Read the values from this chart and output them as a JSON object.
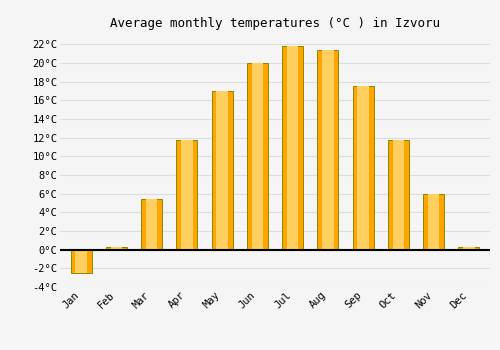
{
  "title": "Average monthly temperatures (°C ) in Izvoru",
  "months": [
    "Jan",
    "Feb",
    "Mar",
    "Apr",
    "May",
    "Jun",
    "Jul",
    "Aug",
    "Sep",
    "Oct",
    "Nov",
    "Dec"
  ],
  "values": [
    -2.5,
    0.3,
    5.4,
    11.8,
    17.0,
    20.0,
    21.8,
    21.4,
    17.5,
    11.8,
    6.0,
    0.3
  ],
  "bar_color": "#FFA500",
  "bar_edge_color": "#888800",
  "ylim": [
    -4,
    23
  ],
  "yticks": [
    -4,
    -2,
    0,
    2,
    4,
    6,
    8,
    10,
    12,
    14,
    16,
    18,
    20,
    22
  ],
  "ytick_labels": [
    "-4°C",
    "-2°C",
    "0°C",
    "2°C",
    "4°C",
    "6°C",
    "8°C",
    "10°C",
    "12°C",
    "14°C",
    "16°C",
    "18°C",
    "20°C",
    "22°C"
  ],
  "background_color": "#f5f5f5",
  "grid_color": "#dddddd",
  "title_fontsize": 9,
  "tick_fontsize": 7.5,
  "bar_width": 0.6
}
